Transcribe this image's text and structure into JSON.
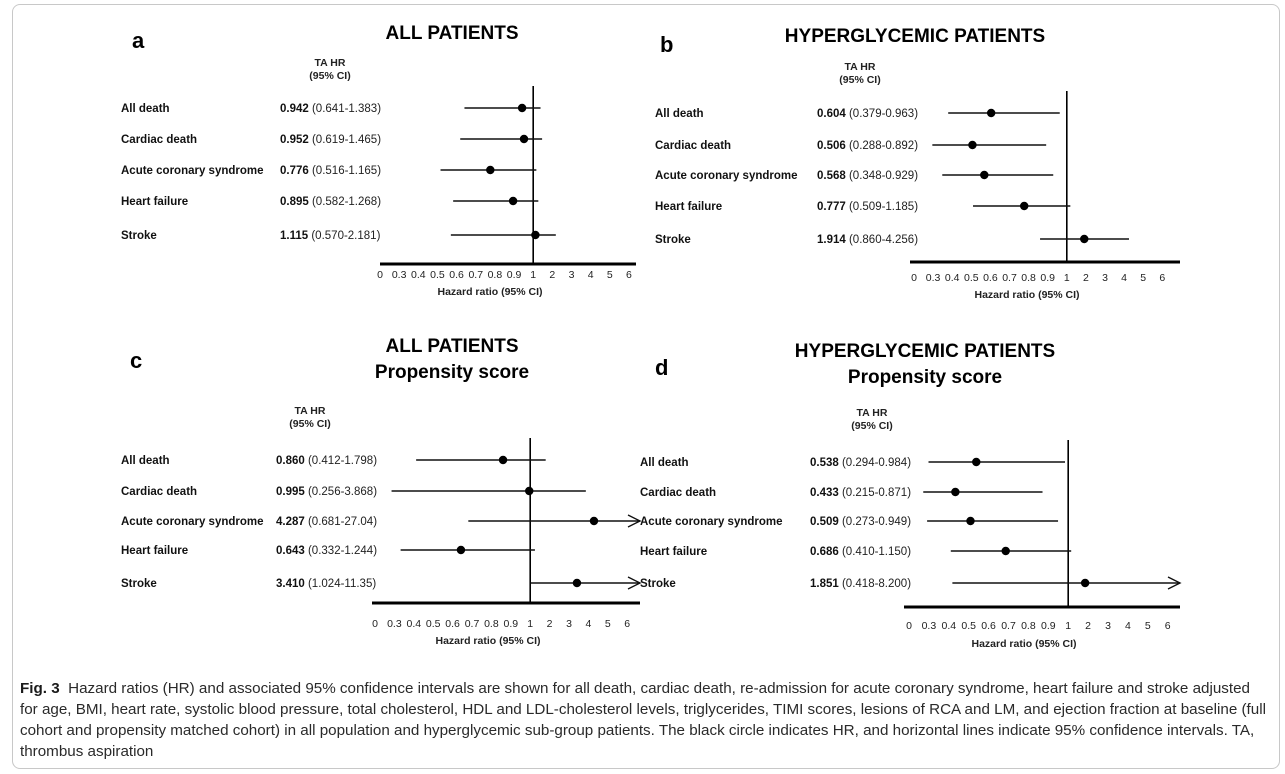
{
  "figure": {
    "caption_label": "Fig. 3",
    "caption_text": "Hazard ratios (HR) and associated 95% confidence intervals are shown for all death, cardiac death, re-admission for acute coronary syndrome, heart failure and stroke adjusted for age, BMI, heart rate, systolic blood pressure, total cholesterol, HDL and LDL-cholesterol levels, triglycerides, TIMI scores, lesions of RCA and LM, and ejection fraction at baseline (full cohort and propensity matched cohort) in all population and hyperglycemic sub-group patients. The black circle indicates HR, and horizontal lines indicate 95% confidence intervals. TA, thrombus aspiration"
  },
  "chart_data": [
    {
      "type": "forest",
      "panel": "a",
      "title": "ALL PATIENTS",
      "subtitle": "",
      "column_header_line1": "TA HR",
      "column_header_line2": "(95% CI)",
      "xlabel": "Hazard ratio (95% CI)",
      "x_ticks": [
        "0",
        "0.3",
        "0.4",
        "0.5",
        "0.6",
        "0.7",
        "0.8",
        "0.9",
        "1",
        "2",
        "3",
        "4",
        "5",
        "6"
      ],
      "reference_line": 1,
      "rows": [
        {
          "label": "All death",
          "hr_text": "0.942",
          "ci_text": "(0.641-1.383)",
          "hr": 0.942,
          "lo": 0.641,
          "hi": 1.383
        },
        {
          "label": "Cardiac death",
          "hr_text": "0.952",
          "ci_text": "(0.619-1.465)",
          "hr": 0.952,
          "lo": 0.619,
          "hi": 1.465
        },
        {
          "label": "Acute coronary syndrome",
          "hr_text": "0.776",
          "ci_text": "(0.516-1.165)",
          "hr": 0.776,
          "lo": 0.516,
          "hi": 1.165
        },
        {
          "label": "Heart failure",
          "hr_text": "0.895",
          "ci_text": "(0.582-1.268)",
          "hr": 0.895,
          "lo": 0.582,
          "hi": 1.268
        },
        {
          "label": "Stroke",
          "hr_text": "1.115",
          "ci_text": "(0.570-2.181)",
          "hr": 1.115,
          "lo": 0.57,
          "hi": 2.181
        }
      ]
    },
    {
      "type": "forest",
      "panel": "b",
      "title": "HYPERGLYCEMIC PATIENTS",
      "subtitle": "",
      "column_header_line1": "TA HR",
      "column_header_line2": "(95% CI)",
      "xlabel": "Hazard ratio (95% CI)",
      "x_ticks": [
        "0",
        "0.3",
        "0.4",
        "0.5",
        "0.6",
        "0.7",
        "0.8",
        "0.9",
        "1",
        "2",
        "3",
        "4",
        "5",
        "6"
      ],
      "reference_line": 1,
      "rows": [
        {
          "label": "All death",
          "hr_text": "0.604",
          "ci_text": "(0.379-0.963)",
          "hr": 0.604,
          "lo": 0.379,
          "hi": 0.963
        },
        {
          "label": "Cardiac death",
          "hr_text": "0.506",
          "ci_text": "(0.288-0.892)",
          "hr": 0.506,
          "lo": 0.288,
          "hi": 0.892
        },
        {
          "label": "Acute coronary syndrome",
          "hr_text": "0.568",
          "ci_text": "(0.348-0.929)",
          "hr": 0.568,
          "lo": 0.348,
          "hi": 0.929
        },
        {
          "label": "Heart failure",
          "hr_text": "0.777",
          "ci_text": "(0.509-1.185)",
          "hr": 0.777,
          "lo": 0.509,
          "hi": 1.185
        },
        {
          "label": "Stroke",
          "hr_text": "1.914",
          "ci_text": "(0.860-4.256)",
          "hr": 1.914,
          "lo": 0.86,
          "hi": 4.256
        }
      ]
    },
    {
      "type": "forest",
      "panel": "c",
      "title": "ALL PATIENTS",
      "subtitle": "Propensity score",
      "column_header_line1": "TA HR",
      "column_header_line2": "(95% CI)",
      "xlabel": "Hazard ratio (95% CI)",
      "x_ticks": [
        "0",
        "0.3",
        "0.4",
        "0.5",
        "0.6",
        "0.7",
        "0.8",
        "0.9",
        "1",
        "2",
        "3",
        "4",
        "5",
        "6"
      ],
      "reference_line": 1,
      "rows": [
        {
          "label": "All death",
          "hr_text": "0.860",
          "ci_text": "(0.412-1.798)",
          "hr": 0.86,
          "lo": 0.412,
          "hi": 1.798
        },
        {
          "label": "Cardiac death",
          "hr_text": "0.995",
          "ci_text": "(0.256-3.868)",
          "hr": 0.995,
          "lo": 0.256,
          "hi": 3.868
        },
        {
          "label": "Acute coronary syndrome",
          "hr_text": "4.287",
          "ci_text": "(0.681-27.04)",
          "hr": 4.287,
          "lo": 0.681,
          "hi": 27.04,
          "arrow": true
        },
        {
          "label": "Heart failure",
          "hr_text": "0.643",
          "ci_text": "(0.332-1.244)",
          "hr": 0.643,
          "lo": 0.332,
          "hi": 1.244
        },
        {
          "label": "Stroke",
          "hr_text": "3.410",
          "ci_text": "(1.024-11.35)",
          "hr": 3.41,
          "lo": 1.024,
          "hi": 11.35,
          "arrow": true
        }
      ]
    },
    {
      "type": "forest",
      "panel": "d",
      "title": "HYPERGLYCEMIC PATIENTS",
      "subtitle": "Propensity score",
      "column_header_line1": "TA HR",
      "column_header_line2": "(95% CI)",
      "xlabel": "Hazard ratio (95% CI)",
      "x_ticks": [
        "0",
        "0.3",
        "0.4",
        "0.5",
        "0.6",
        "0.7",
        "0.8",
        "0.9",
        "1",
        "2",
        "3",
        "4",
        "5",
        "6"
      ],
      "reference_line": 1,
      "rows": [
        {
          "label": "All death",
          "hr_text": "0.538",
          "ci_text": "(0.294-0.984)",
          "hr": 0.538,
          "lo": 0.294,
          "hi": 0.984
        },
        {
          "label": "Cardiac death",
          "hr_text": "0.433",
          "ci_text": "(0.215-0.871)",
          "hr": 0.433,
          "lo": 0.215,
          "hi": 0.871
        },
        {
          "label": "Acute coronary syndrome",
          "hr_text": "0.509",
          "ci_text": "(0.273-0.949)",
          "hr": 0.509,
          "lo": 0.273,
          "hi": 0.949
        },
        {
          "label": "Heart failure",
          "hr_text": "0.686",
          "ci_text": "(0.410-1.150)",
          "hr": 0.686,
          "lo": 0.41,
          "hi": 1.15
        },
        {
          "label": "Stroke",
          "hr_text": "1.851",
          "ci_text": "(0.418-8.200)",
          "hr": 1.851,
          "lo": 0.418,
          "hi": 8.2,
          "arrow": true
        }
      ]
    }
  ]
}
